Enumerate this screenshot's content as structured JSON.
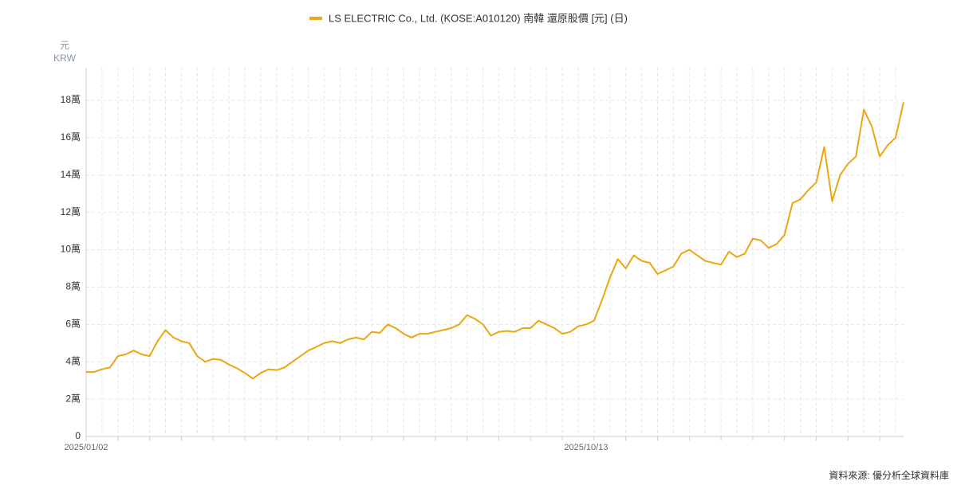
{
  "chart_data": {
    "type": "line",
    "title": "LS ELECTRIC Co., Ltd. (KOSE:A010120) 南韓 還原股價 [元] (日)",
    "y_unit": "元",
    "y_label": "KRW",
    "source": "資料來源: 優分析全球資料庫",
    "categories": [
      "2025/01/02",
      null,
      null,
      null,
      null,
      null,
      null,
      null,
      null,
      null,
      null,
      null,
      null,
      null,
      null,
      null,
      null,
      null,
      null,
      null,
      null,
      null,
      null,
      null,
      null,
      null,
      null,
      null,
      null,
      null,
      null,
      null,
      null,
      null,
      null,
      null,
      null,
      null,
      null,
      null,
      null,
      null,
      null,
      null,
      null,
      null,
      null,
      null,
      null,
      null,
      null,
      null,
      null,
      null,
      null,
      null,
      null,
      null,
      null,
      null,
      null,
      null,
      null,
      "2025/10/13",
      null,
      null,
      null,
      null,
      null,
      null,
      null,
      null,
      null,
      null,
      null,
      null,
      null,
      null,
      null,
      null,
      null,
      null,
      null,
      null,
      null,
      null,
      null,
      null,
      null,
      null,
      null,
      null,
      null,
      null,
      null,
      null,
      null,
      null,
      null,
      null,
      null,
      null,
      null,
      null
    ],
    "series": [
      {
        "name": "LS ELECTRIC Co., Ltd. (KOSE:A010120) 南韓 還原股價 [元] (日)",
        "color": "#eba612",
        "values": [
          34500,
          34500,
          36000,
          37000,
          43000,
          44000,
          46000,
          44000,
          43000,
          51000,
          57000,
          53000,
          51000,
          50000,
          43000,
          40000,
          41500,
          41000,
          38500,
          36500,
          34000,
          31000,
          34000,
          36000,
          35500,
          37000,
          40000,
          43000,
          46000,
          48000,
          50000,
          51000,
          50000,
          52000,
          53000,
          52000,
          56000,
          55500,
          60000,
          58000,
          55000,
          53000,
          55000,
          55000,
          56000,
          57000,
          58000,
          60000,
          65000,
          63000,
          60000,
          54000,
          56000,
          56500,
          56000,
          58000,
          58000,
          62000,
          60000,
          58000,
          55000,
          56000,
          59000,
          60000,
          62000,
          73000,
          85000,
          95000,
          90000,
          97000,
          94000,
          93000,
          87000,
          89000,
          91000,
          98000,
          100000,
          97000,
          94000,
          93000,
          92000,
          99000,
          96000,
          98000,
          106000,
          105000,
          101000,
          103000,
          108000,
          125000,
          127000,
          132000,
          136000,
          155000,
          126000,
          140000,
          146000,
          150000,
          175000,
          166000,
          150000,
          156000,
          160000,
          179000
        ]
      }
    ],
    "ylim": [
      0,
      197500
    ],
    "yticks": [
      0,
      {
        "value": 20000,
        "label": "2萬"
      },
      {
        "value": 40000,
        "label": "4萬"
      },
      {
        "value": 60000,
        "label": "6萬"
      },
      {
        "value": 80000,
        "label": "8萬"
      },
      {
        "value": 100000,
        "label": "10萬"
      },
      {
        "value": 120000,
        "label": "12萬"
      },
      {
        "value": 140000,
        "label": "14萬"
      },
      {
        "value": 160000,
        "label": "16萬"
      },
      {
        "value": 180000,
        "label": "18萬"
      }
    ],
    "grid": true
  }
}
